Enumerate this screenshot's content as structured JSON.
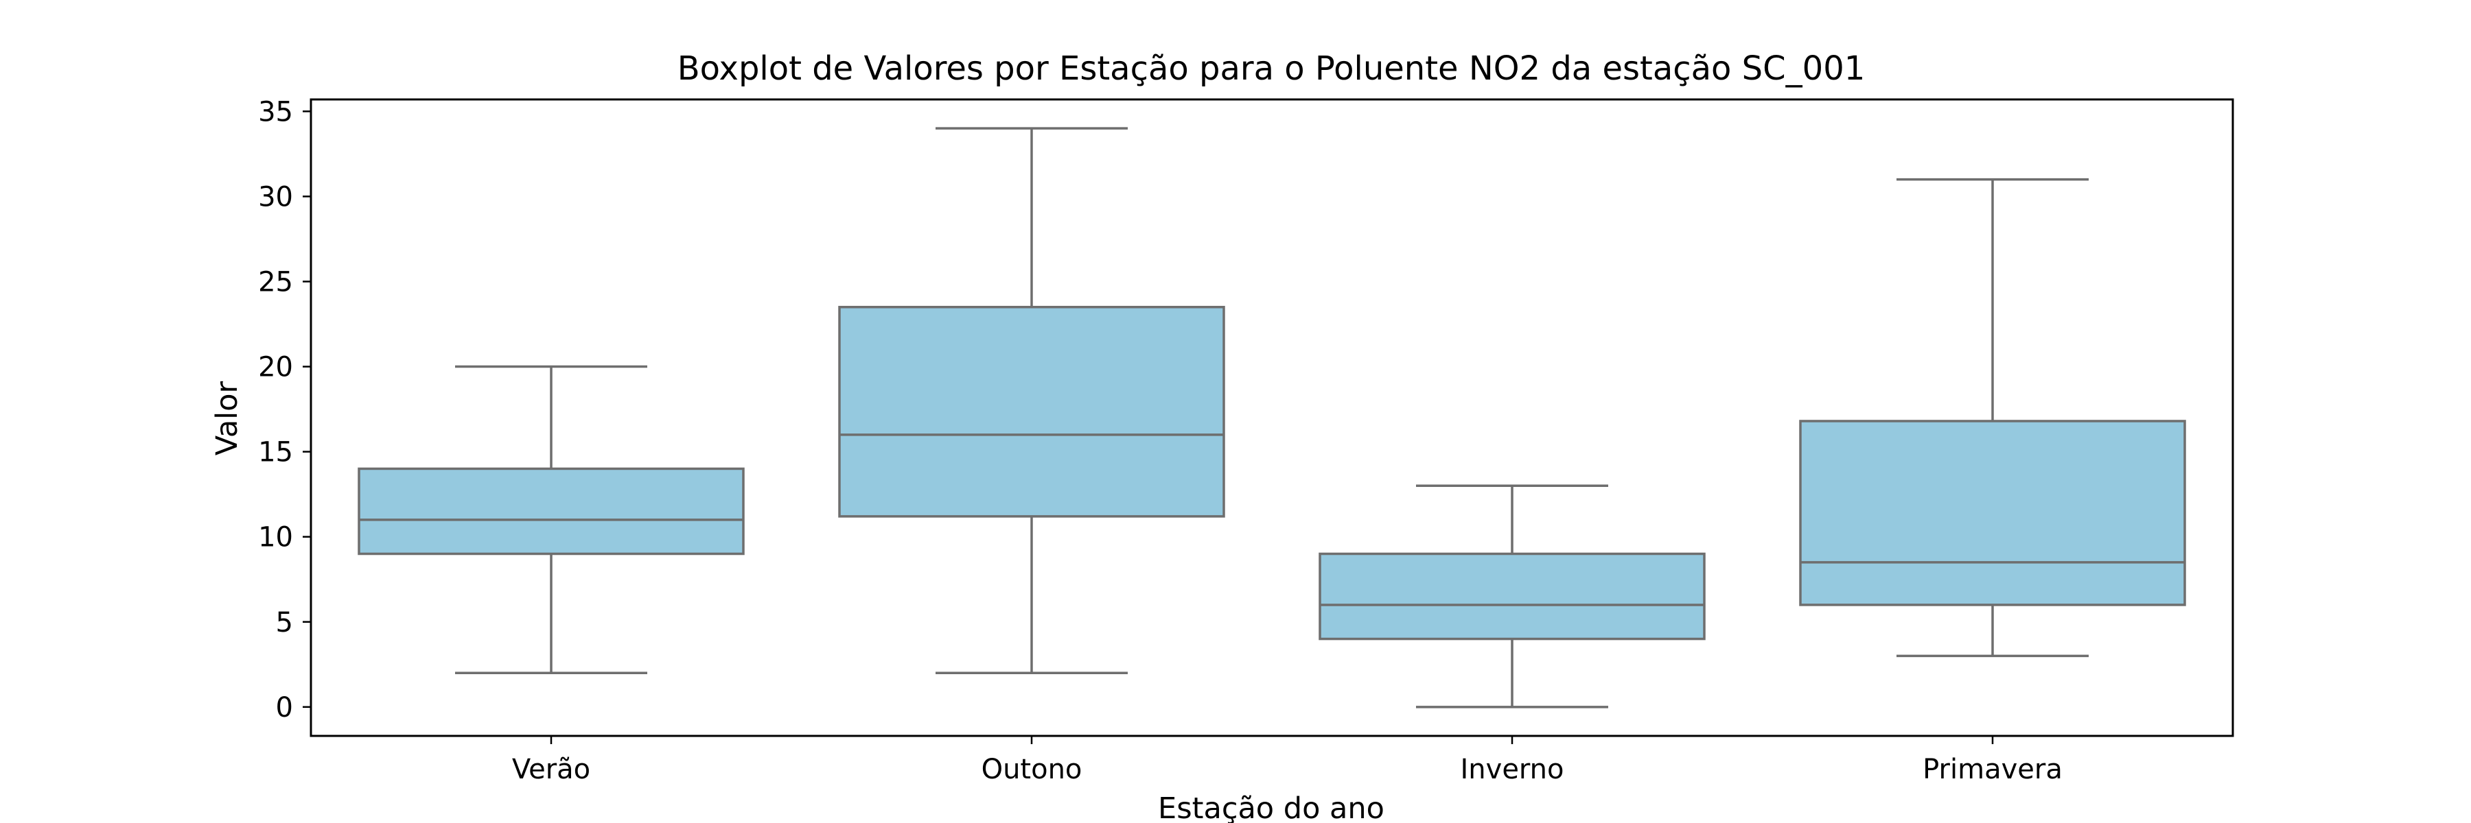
{
  "chart_data": {
    "type": "box",
    "title": "Boxplot de Valores por Estação para o Poluente NO2 da estação SC_001",
    "xlabel": "Estação do ano",
    "ylabel": "Valor",
    "ylim": [
      -1.7,
      35.7
    ],
    "yticks": [
      0,
      5,
      10,
      15,
      20,
      25,
      30,
      35
    ],
    "grid": false,
    "colors": {
      "box_fill": "#95c9df",
      "box_edge": "#6e6e6e",
      "axis": "#000000"
    },
    "categories": [
      "Verão",
      "Outono",
      "Inverno",
      "Primavera"
    ],
    "boxes": [
      {
        "category": "Verão",
        "whisker_low": 2,
        "q1": 9,
        "median": 11,
        "q3": 14,
        "whisker_high": 20
      },
      {
        "category": "Outono",
        "whisker_low": 2,
        "q1": 11.2,
        "median": 16,
        "q3": 23.5,
        "whisker_high": 34
      },
      {
        "category": "Inverno",
        "whisker_low": 0,
        "q1": 4,
        "median": 6,
        "q3": 9,
        "whisker_high": 13
      },
      {
        "category": "Primavera",
        "whisker_low": 3,
        "q1": 6,
        "median": 8.5,
        "q3": 16.8,
        "whisker_high": 31
      }
    ]
  }
}
